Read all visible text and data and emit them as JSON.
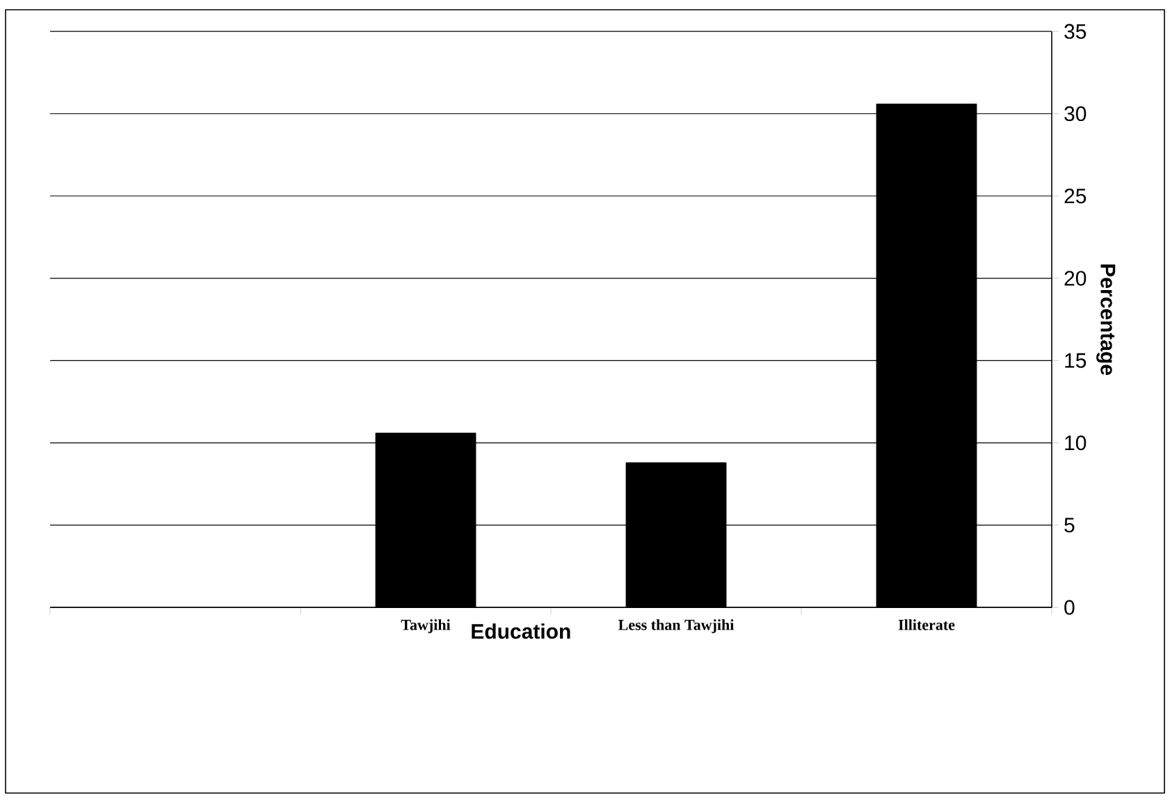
{
  "chart_data": {
    "type": "bar",
    "xlabel": "Education",
    "ylabel": "Percentage",
    "categories": [
      null,
      "Tawjihi",
      "Less than Tawjihi",
      "Illiterate"
    ],
    "values": [
      null,
      10.6,
      8.8,
      30.6
    ],
    "color": "#000000",
    "ylim": [
      0,
      35
    ],
    "yticks": [
      0,
      5,
      10,
      15,
      20,
      25,
      30,
      35
    ],
    "grid": "y"
  }
}
